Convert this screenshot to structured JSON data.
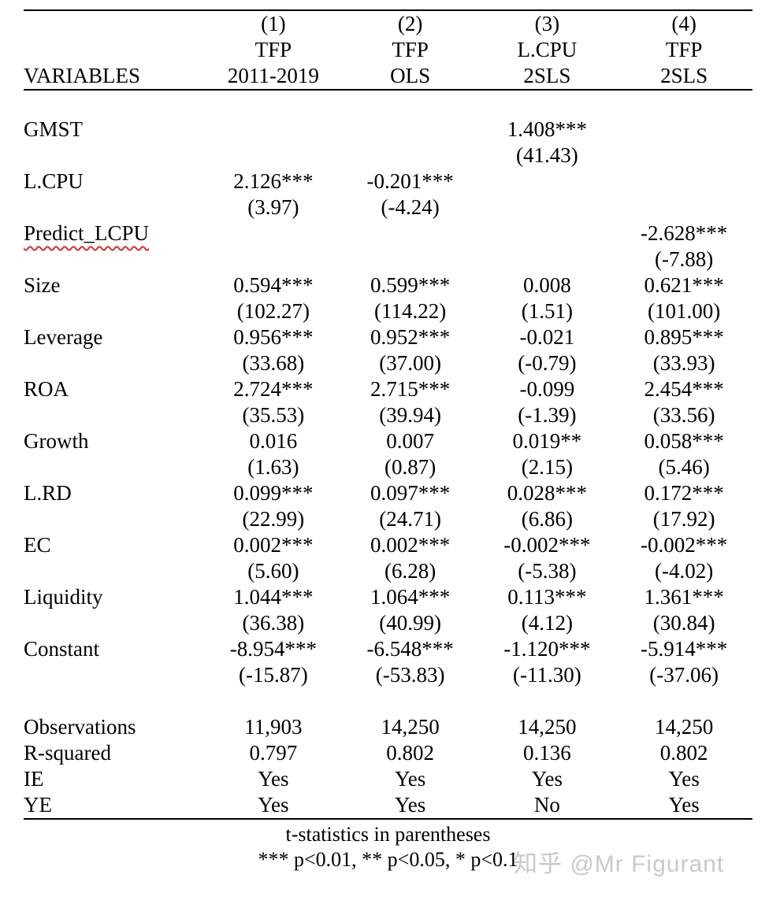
{
  "table": {
    "header": {
      "variables_label": "VARIABLES",
      "columns": [
        {
          "number": "(1)",
          "depvar": "TFP",
          "model": "2011-2019"
        },
        {
          "number": "(2)",
          "depvar": "TFP",
          "model": "OLS"
        },
        {
          "number": "(3)",
          "depvar": "L.CPU",
          "model": "2SLS"
        },
        {
          "number": "(4)",
          "depvar": "TFP",
          "model": "2SLS"
        }
      ]
    },
    "rows": [
      {
        "label": "GMST",
        "squiggle": false,
        "coef": [
          "",
          "",
          "1.408***",
          ""
        ],
        "tstat": [
          "",
          "",
          "(41.43)",
          ""
        ]
      },
      {
        "label": "L.CPU",
        "squiggle": false,
        "coef": [
          "2.126***",
          "-0.201***",
          "",
          ""
        ],
        "tstat": [
          "(3.97)",
          "(-4.24)",
          "",
          ""
        ]
      },
      {
        "label": "Predict_LCPU",
        "squiggle": true,
        "coef": [
          "",
          "",
          "",
          "-2.628***"
        ],
        "tstat": [
          "",
          "",
          "",
          "(-7.88)"
        ]
      },
      {
        "label": "Size",
        "squiggle": false,
        "coef": [
          "0.594***",
          "0.599***",
          "0.008",
          "0.621***"
        ],
        "tstat": [
          "(102.27)",
          "(114.22)",
          "(1.51)",
          "(101.00)"
        ]
      },
      {
        "label": "Leverage",
        "squiggle": false,
        "coef": [
          "0.956***",
          "0.952***",
          "-0.021",
          "0.895***"
        ],
        "tstat": [
          "(33.68)",
          "(37.00)",
          "(-0.79)",
          "(33.93)"
        ]
      },
      {
        "label": "ROA",
        "squiggle": false,
        "coef": [
          "2.724***",
          "2.715***",
          "-0.099",
          "2.454***"
        ],
        "tstat": [
          "(35.53)",
          "(39.94)",
          "(-1.39)",
          "(33.56)"
        ]
      },
      {
        "label": "Growth",
        "squiggle": false,
        "coef": [
          "0.016",
          "0.007",
          "0.019**",
          "0.058***"
        ],
        "tstat": [
          "(1.63)",
          "(0.87)",
          "(2.15)",
          "(5.46)"
        ]
      },
      {
        "label": "L.RD",
        "squiggle": false,
        "coef": [
          "0.099***",
          "0.097***",
          "0.028***",
          "0.172***"
        ],
        "tstat": [
          "(22.99)",
          "(24.71)",
          "(6.86)",
          "(17.92)"
        ]
      },
      {
        "label": "EC",
        "squiggle": false,
        "coef": [
          "0.002***",
          "0.002***",
          "-0.002***",
          "-0.002***"
        ],
        "tstat": [
          "(5.60)",
          "(6.28)",
          "(-5.38)",
          "(-4.02)"
        ]
      },
      {
        "label": "Liquidity",
        "squiggle": false,
        "coef": [
          "1.044***",
          "1.064***",
          "0.113***",
          "1.361***"
        ],
        "tstat": [
          "(36.38)",
          "(40.99)",
          "(4.12)",
          "(30.84)"
        ]
      },
      {
        "label": "Constant",
        "squiggle": false,
        "coef": [
          "-8.954***",
          "-6.548***",
          "-1.120***",
          "-5.914***"
        ],
        "tstat": [
          "(-15.87)",
          "(-53.83)",
          "(-11.30)",
          "(-37.06)"
        ]
      }
    ],
    "stats": [
      {
        "label": "Observations",
        "values": [
          "11,903",
          "14,250",
          "14,250",
          "14,250"
        ]
      },
      {
        "label": "R-squared",
        "values": [
          "0.797",
          "0.802",
          "0.136",
          "0.802"
        ]
      },
      {
        "label": "IE",
        "values": [
          "Yes",
          "Yes",
          "Yes",
          "Yes"
        ]
      },
      {
        "label": "YE",
        "values": [
          "Yes",
          "Yes",
          "No",
          "Yes"
        ]
      }
    ],
    "notes": [
      "t-statistics in parentheses",
      "*** p<0.01, ** p<0.05, * p<0.1"
    ]
  },
  "squiggle_color": "#d0342c",
  "watermark": {
    "text": "知乎 @Mr Figurant",
    "color": "#c9c9c9"
  }
}
